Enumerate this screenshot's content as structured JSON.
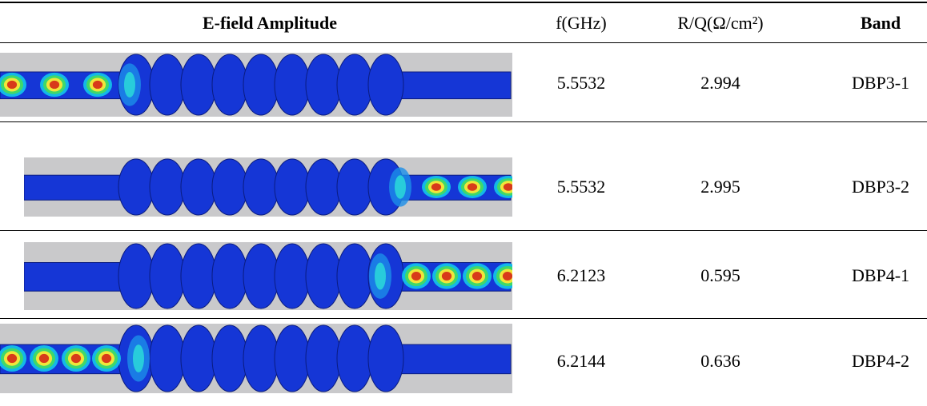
{
  "table": {
    "header": [
      "E-field Amplitude",
      "f(GHz)",
      "R/Q(Ω/cm²)",
      "Band"
    ],
    "rows": [
      [
        "5.5532",
        "2.994",
        "DBP3-1"
      ],
      [
        "5.5532",
        "2.995",
        "DBP3-2"
      ],
      [
        "6.2123",
        "0.595",
        "DBP4-1"
      ],
      [
        "6.2144",
        "0.636",
        "DBP4-2"
      ]
    ]
  }
}
